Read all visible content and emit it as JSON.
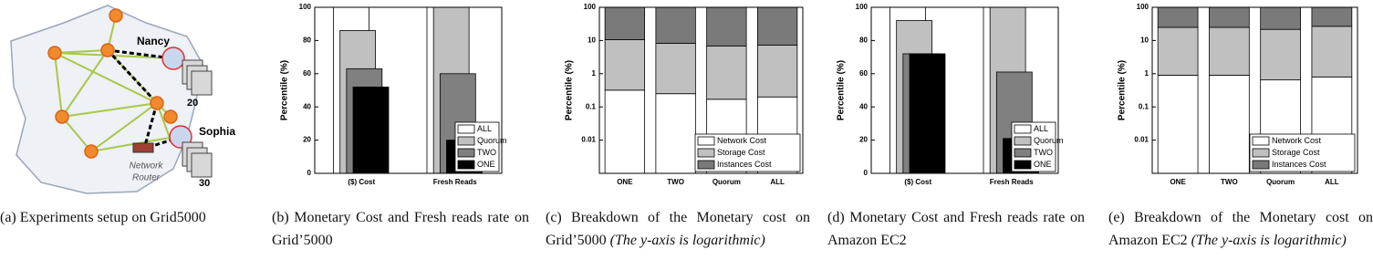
{
  "diagram": {
    "labels": {
      "nancy": "Nancy",
      "nancy_count": "20",
      "sophia": "Sophia",
      "sophia_count": "30",
      "router": [
        "Network",
        "Router"
      ]
    },
    "caption": "(a) Experiments setup on Grid5000"
  },
  "chart_data": [
    {
      "type": "bar",
      "caption": "(b) Monetary Cost and Fresh reads rate on Grid’5000",
      "ylabel": "Percentile (%)",
      "categories": [
        "($) Cost",
        "Fresh Reads"
      ],
      "series": [
        {
          "name": "ALL",
          "color": "#ffffff",
          "values": [
            100,
            100
          ]
        },
        {
          "name": "Quorum",
          "color": "#c0c0c0",
          "values": [
            86,
            100
          ]
        },
        {
          "name": "TWO",
          "color": "#808080",
          "values": [
            63,
            60
          ]
        },
        {
          "name": "ONE",
          "color": "#000000",
          "values": [
            52,
            20
          ]
        }
      ],
      "ylim": [
        0,
        100
      ],
      "yticks": [
        0,
        20,
        40,
        60,
        80,
        100
      ],
      "legend": "lower right"
    },
    {
      "type": "bar",
      "stacked": true,
      "log": true,
      "caption": "(c) Breakdown of the Monetary cost on Grid’5000",
      "caption_note": "(The y-axis is logarithmic)",
      "ylabel": "Percentile (%)",
      "categories": [
        "ONE",
        "TWO",
        "Quorum",
        "ALL"
      ],
      "series": [
        {
          "name": "Network Cost",
          "color": "#ffffff",
          "values": [
            0.32,
            0.25,
            0.17,
            0.2
          ]
        },
        {
          "name": "Storage Cost",
          "color": "#c0c0c0",
          "values": [
            10.3,
            8.0,
            6.7,
            7.1
          ]
        },
        {
          "name": "Instances Cost",
          "color": "#7a7a7a",
          "values": [
            89.4,
            91.75,
            93.1,
            92.7
          ]
        }
      ],
      "ylim": [
        0.001,
        100
      ],
      "yticks": [
        0.01,
        0.1,
        1,
        10,
        100
      ],
      "legend": "lower right"
    },
    {
      "type": "bar",
      "caption": "(d) Monetary Cost and Fresh reads rate on Amazon EC2",
      "ylabel": "Percentile (%)",
      "categories": [
        "($) Cost",
        "Fresh Reads"
      ],
      "series": [
        {
          "name": "ALL",
          "color": "#ffffff",
          "values": [
            100,
            100
          ]
        },
        {
          "name": "Quorum",
          "color": "#c0c0c0",
          "values": [
            92,
            100
          ]
        },
        {
          "name": "TWO",
          "color": "#808080",
          "values": [
            72,
            61
          ]
        },
        {
          "name": "ONE",
          "color": "#000000",
          "values": [
            72,
            21
          ]
        }
      ],
      "ylim": [
        0,
        100
      ],
      "yticks": [
        0,
        20,
        40,
        60,
        80,
        100
      ],
      "legend": "lower right"
    },
    {
      "type": "bar",
      "stacked": true,
      "log": true,
      "caption": "(e) Breakdown of the Monetary cost on Amazon EC2",
      "caption_note": "(The y-axis is logarithmic)",
      "ylabel": "Percentile (%)",
      "categories": [
        "ONE",
        "TWO",
        "Quorum",
        "ALL"
      ],
      "series": [
        {
          "name": "Network Cost",
          "color": "#ffffff",
          "values": [
            0.9,
            0.9,
            0.65,
            0.8
          ]
        },
        {
          "name": "Storage Cost",
          "color": "#c0c0c0",
          "values": [
            24,
            24,
            21,
            26
          ]
        },
        {
          "name": "Instances Cost",
          "color": "#7a7a7a",
          "values": [
            75,
            75,
            78,
            73
          ]
        }
      ],
      "ylim": [
        0.001,
        100
      ],
      "yticks": [
        0.01,
        0.1,
        1,
        10,
        100
      ],
      "legend": "lower right"
    }
  ]
}
